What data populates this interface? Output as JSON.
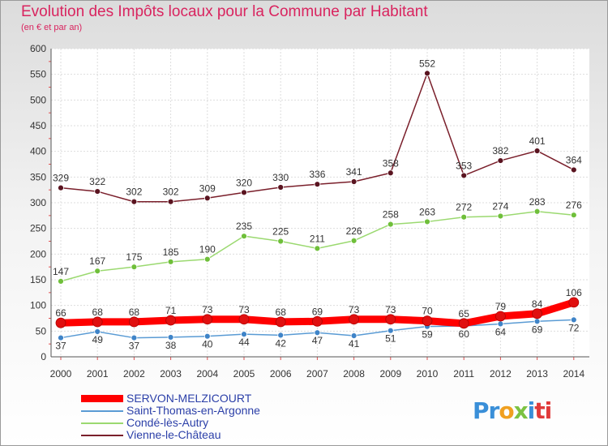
{
  "chart_data": {
    "type": "line",
    "title": "Evolution des Impôts locaux pour la Commune par Habitant",
    "subtitle": "(en € et par an)",
    "xlabel": "",
    "ylabel": "",
    "ylim": [
      0,
      600
    ],
    "yticks": [
      0,
      50,
      100,
      150,
      200,
      250,
      300,
      350,
      400,
      450,
      500,
      550,
      600
    ],
    "categories": [
      "2000",
      "2001",
      "2002",
      "2003",
      "2004",
      "2005",
      "2006",
      "2007",
      "2008",
      "2009",
      "2010",
      "2011",
      "2012",
      "2013",
      "2014"
    ],
    "series": [
      {
        "name": "Vienne-le-Château",
        "color": "#7a1f2b",
        "marker": "#5a1420",
        "width": 1.5,
        "values": [
          329,
          322,
          302,
          302,
          309,
          320,
          330,
          336,
          341,
          358,
          552,
          353,
          382,
          401,
          364
        ],
        "label_pos": "above"
      },
      {
        "name": "Condé-lès-Autry",
        "color": "#9bd970",
        "marker": "#6fbf3a",
        "width": 1.5,
        "values": [
          147,
          167,
          175,
          185,
          190,
          235,
          225,
          211,
          226,
          258,
          263,
          272,
          274,
          283,
          276
        ],
        "label_pos": "above"
      },
      {
        "name": "Saint-Thomas-en-Argonne",
        "color": "#5a9bd4",
        "marker": "#3f84c8",
        "width": 1.5,
        "values": [
          37,
          49,
          37,
          38,
          40,
          44,
          42,
          47,
          41,
          51,
          59,
          60,
          64,
          69,
          72
        ],
        "label_pos": "below"
      },
      {
        "name": "SERVON-MELZICOURT",
        "color": "#ff0000",
        "marker": "#e01010",
        "width": 9,
        "values": [
          66,
          68,
          68,
          71,
          73,
          73,
          68,
          69,
          73,
          73,
          70,
          65,
          79,
          84,
          106
        ],
        "label_pos": "above"
      }
    ],
    "legend": [
      "SERVON-MELZICOURT",
      "Saint-Thomas-en-Argonne",
      "Condé-lès-Autry",
      "Vienne-le-Château"
    ],
    "legend_colors": [
      "#ff0000",
      "#5a9bd4",
      "#9bd970",
      "#7a1f2b"
    ]
  },
  "logo": {
    "p1": "Pr",
    "p2": "o",
    "p3": "x",
    "p4": "i",
    "p5": "ti"
  }
}
